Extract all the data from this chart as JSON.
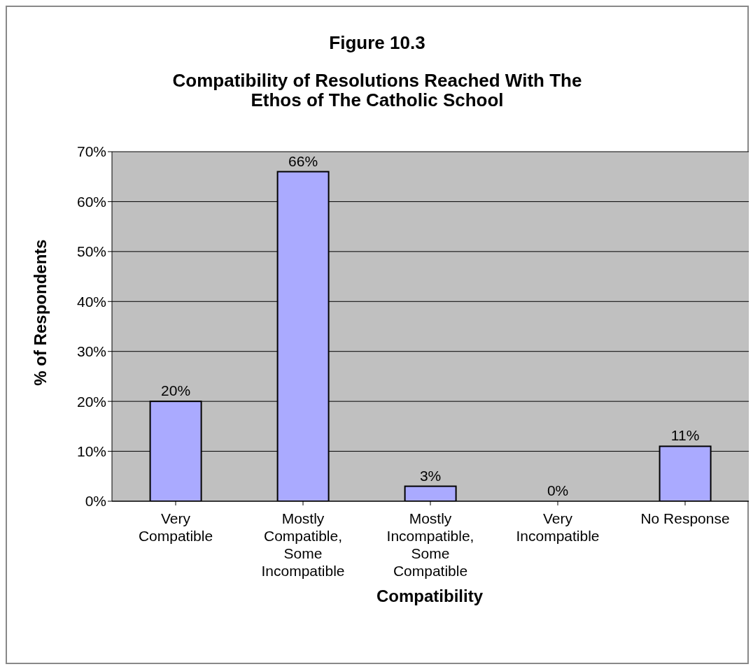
{
  "chart_data": {
    "type": "bar",
    "title": "Figure 10.3",
    "subtitle": "Compatibility of Resolutions Reached With The Ethos of The Catholic School",
    "xlabel": "Compatibility",
    "ylabel": "% of Respondents",
    "categories": [
      "Very Compatible",
      "Mostly Compatible, Some Incompatible",
      "Mostly Incompatible, Some Compatible",
      "Very Incompatible",
      "No Response"
    ],
    "values": [
      20,
      66,
      3,
      0,
      11
    ],
    "value_labels": [
      "20%",
      "66%",
      "3%",
      "0%",
      "11%"
    ],
    "color": "#aaaaff",
    "ylim": [
      0,
      70
    ],
    "yticks": [
      {
        "value": 0,
        "label": "0%"
      },
      {
        "value": 10,
        "label": "10%"
      },
      {
        "value": 20,
        "label": "20%"
      },
      {
        "value": 30,
        "label": "30%"
      },
      {
        "value": 40,
        "label": "40%"
      },
      {
        "value": 50,
        "label": "50%"
      },
      {
        "value": 60,
        "label": "60%"
      },
      {
        "value": 70,
        "label": "70%"
      }
    ],
    "grid": "y"
  }
}
